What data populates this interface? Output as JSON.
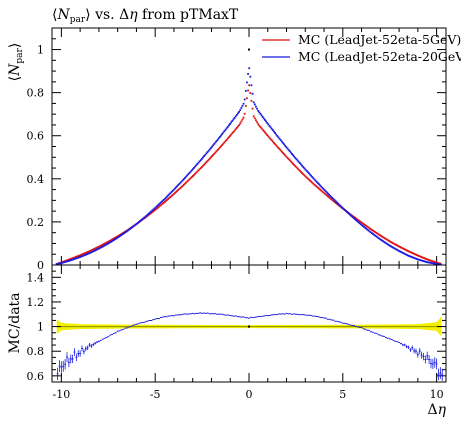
{
  "colors": {
    "mc_red": "#e01010",
    "mc_blue": "#1a1ae0",
    "data_band": "#f2f000",
    "data_line": "#999900"
  },
  "chart_data": [
    {
      "type": "scatter",
      "title": "⟨N_par⟩ vs. Δη from pTMaxT",
      "title_parts": [
        "⟨",
        "N",
        "par",
        "⟩ vs. Δ",
        "η",
        " from pTMaxT"
      ],
      "xlabel": "Δη",
      "ylabel": "⟨N_par⟩",
      "xlim": [
        -10.5,
        10.5
      ],
      "ylim": [
        0,
        1.1
      ],
      "xticks": [
        -10,
        -5,
        0,
        5,
        10
      ],
      "yticks": [
        0,
        0.2,
        0.4,
        0.6,
        0.8,
        1
      ],
      "ytick_labels": [
        "0",
        "0.2",
        "0.4",
        "0.6",
        "0.8",
        "1"
      ],
      "legend_position": "top-right",
      "grid": false,
      "x": [
        -10.25,
        -10,
        -9.5,
        -9,
        -8.5,
        -8,
        -7.5,
        -7,
        -6.5,
        -6,
        -5.5,
        -5,
        -4.5,
        -4,
        -3.5,
        -3,
        -2.5,
        -2,
        -1.5,
        -1,
        -0.5,
        -0.25,
        0,
        0.25,
        0.5,
        1,
        1.5,
        2,
        2.5,
        3,
        3.5,
        4,
        4.5,
        5,
        5.5,
        6,
        6.5,
        7,
        7.5,
        8,
        8.5,
        9,
        9.5,
        10,
        10.25
      ],
      "series": [
        {
          "name": "MC (LeadJet-52eta-5GeV)",
          "color": "#e01010",
          "values": [
            0.005,
            0.012,
            0.028,
            0.045,
            0.064,
            0.085,
            0.108,
            0.133,
            0.16,
            0.19,
            0.222,
            0.256,
            0.292,
            0.33,
            0.37,
            0.412,
            0.456,
            0.502,
            0.55,
            0.6,
            0.652,
            0.69,
            0.84,
            0.69,
            0.652,
            0.6,
            0.55,
            0.502,
            0.456,
            0.412,
            0.372,
            0.334,
            0.297,
            0.262,
            0.229,
            0.197,
            0.166,
            0.137,
            0.11,
            0.086,
            0.064,
            0.044,
            0.026,
            0.011,
            0.005
          ]
        },
        {
          "name": "MC (LeadJet-52eta-20GeV)",
          "color": "#1a1ae0",
          "values": [
            0.004,
            0.009,
            0.022,
            0.037,
            0.055,
            0.076,
            0.1,
            0.127,
            0.157,
            0.19,
            0.226,
            0.265,
            0.306,
            0.35,
            0.396,
            0.444,
            0.494,
            0.546,
            0.6,
            0.656,
            0.714,
            0.755,
            0.92,
            0.755,
            0.714,
            0.656,
            0.6,
            0.546,
            0.494,
            0.444,
            0.396,
            0.35,
            0.306,
            0.264,
            0.224,
            0.186,
            0.151,
            0.119,
            0.09,
            0.065,
            0.043,
            0.026,
            0.013,
            0.005,
            0.002
          ]
        }
      ],
      "data_points": [
        {
          "x": 0,
          "y": 1.0
        }
      ]
    },
    {
      "type": "scatter",
      "ylabel": "MC/data",
      "xlabel": "Δη",
      "xlim": [
        -10.5,
        10.5
      ],
      "ylim": [
        0.55,
        1.5
      ],
      "xticks": [
        -10,
        -5,
        0,
        5,
        10
      ],
      "xtick_labels": [
        "-10",
        "-5",
        "0",
        "5",
        "10"
      ],
      "yticks": [
        0.6,
        0.8,
        1,
        1.2,
        1.4
      ],
      "ytick_labels": [
        "0.6",
        "0.8",
        "1",
        "1.2",
        "1.4"
      ],
      "reference_line": 1.0,
      "band": {
        "x": [
          -10.25,
          -10,
          -9,
          -6,
          0,
          6,
          9,
          10,
          10.25
        ],
        "half_width": [
          0.06,
          0.03,
          0.02,
          0.015,
          0.012,
          0.015,
          0.02,
          0.035,
          0.08
        ]
      },
      "x": [
        -10.25,
        -10,
        -9.5,
        -9,
        -8.5,
        -8,
        -7.5,
        -7,
        -6.5,
        -6,
        -5.5,
        -5,
        -4.5,
        -4,
        -3.5,
        -3,
        -2.5,
        -2,
        -1.5,
        -1,
        -0.5,
        0,
        0.5,
        1,
        1.5,
        2,
        2.5,
        3,
        3.5,
        4,
        4.5,
        5,
        5.5,
        6,
        6.5,
        7,
        7.5,
        8,
        8.5,
        9,
        9.5,
        10,
        10.25
      ],
      "series": [
        {
          "name": "MC (LeadJet-52eta-20GeV)",
          "color": "#1a1ae0",
          "values": [
            0.6,
            0.68,
            0.74,
            0.79,
            0.84,
            0.88,
            0.92,
            0.96,
            0.99,
            1.02,
            1.04,
            1.06,
            1.08,
            1.09,
            1.1,
            1.105,
            1.11,
            1.105,
            1.1,
            1.09,
            1.08,
            1.07,
            1.08,
            1.09,
            1.1,
            1.105,
            1.1,
            1.095,
            1.085,
            1.07,
            1.05,
            1.03,
            1.01,
            0.99,
            0.96,
            0.93,
            0.9,
            0.87,
            0.83,
            0.79,
            0.74,
            0.68,
            0.6
          ]
        }
      ],
      "data_points": [
        {
          "x": 0,
          "y": 1.0
        }
      ]
    }
  ]
}
